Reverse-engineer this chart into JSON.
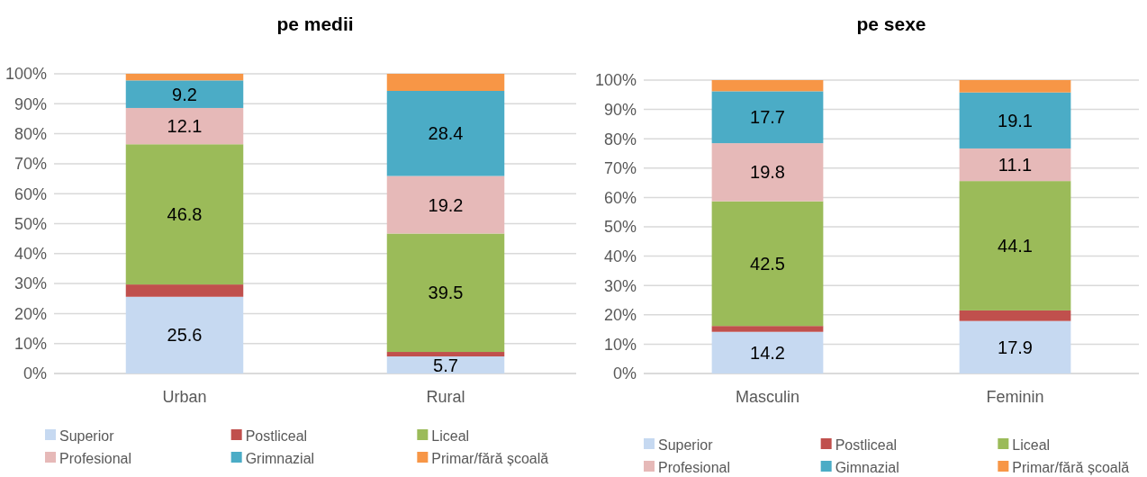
{
  "chart_data": [
    {
      "type": "bar",
      "title": "pe medii",
      "stacked": true,
      "categories": [
        "Urban",
        "Rural"
      ],
      "ylim": [
        0,
        100
      ],
      "yticks": [
        {
          "value": 0,
          "label": "0%"
        },
        {
          "value": 10,
          "label": "10%"
        },
        {
          "value": 20,
          "label": "20%"
        },
        {
          "value": 30,
          "label": "30%"
        },
        {
          "value": 40,
          "label": "40%"
        },
        {
          "value": 50,
          "label": "50%"
        },
        {
          "value": 60,
          "label": "60%"
        },
        {
          "value": 70,
          "label": "70%"
        },
        {
          "value": 80,
          "label": "80%"
        },
        {
          "value": 90,
          "label": "90%"
        },
        {
          "value": 100,
          "label": "100%"
        }
      ],
      "grid": "y",
      "legend": "bottom",
      "series": [
        {
          "name": "Superior",
          "color": "#c6d9f1",
          "values": [
            25.6,
            5.7
          ],
          "value_labels": [
            "25.6",
            "5.7"
          ]
        },
        {
          "name": "Postliceal",
          "color": "#c0504d",
          "values": [
            4.1,
            1.5
          ],
          "value_labels": [
            null,
            null
          ]
        },
        {
          "name": "Liceal",
          "color": "#9bbb59",
          "values": [
            46.8,
            39.5
          ],
          "value_labels": [
            "46.8",
            "39.5"
          ]
        },
        {
          "name": "Profesional",
          "color": "#e6b9b8",
          "values": [
            12.1,
            19.2
          ],
          "value_labels": [
            "12.1",
            "19.2"
          ]
        },
        {
          "name": "Grimnazial",
          "color": "#4bacc6",
          "values": [
            9.2,
            28.4
          ],
          "value_labels": [
            "9.2",
            "28.4"
          ]
        },
        {
          "name": "Primar/fără școală",
          "color": "#f79646",
          "values": [
            2.2,
            5.7
          ],
          "value_labels": [
            null,
            null
          ]
        }
      ]
    },
    {
      "type": "bar",
      "title": "pe sexe",
      "stacked": true,
      "categories": [
        "Masculin",
        "Feminin"
      ],
      "ylim": [
        0,
        100
      ],
      "yticks": [
        {
          "value": 0,
          "label": "0%"
        },
        {
          "value": 10,
          "label": "10%"
        },
        {
          "value": 20,
          "label": "20%"
        },
        {
          "value": 30,
          "label": "30%"
        },
        {
          "value": 40,
          "label": "40%"
        },
        {
          "value": 50,
          "label": "50%"
        },
        {
          "value": 60,
          "label": "60%"
        },
        {
          "value": 70,
          "label": "70%"
        },
        {
          "value": 80,
          "label": "80%"
        },
        {
          "value": 90,
          "label": "90%"
        },
        {
          "value": 100,
          "label": "100%"
        }
      ],
      "grid": "y",
      "legend": "bottom",
      "series": [
        {
          "name": "Superior",
          "color": "#c6d9f1",
          "values": [
            14.2,
            17.9
          ],
          "value_labels": [
            "14.2",
            "17.9"
          ]
        },
        {
          "name": "Postliceal",
          "color": "#c0504d",
          "values": [
            2.0,
            3.6
          ],
          "value_labels": [
            null,
            null
          ]
        },
        {
          "name": "Liceal",
          "color": "#9bbb59",
          "values": [
            42.5,
            44.1
          ],
          "value_labels": [
            "42.5",
            "44.1"
          ]
        },
        {
          "name": "Profesional",
          "color": "#e6b9b8",
          "values": [
            19.8,
            11.1
          ],
          "value_labels": [
            "19.8",
            "11.1"
          ]
        },
        {
          "name": "Gimnazial",
          "color": "#4bacc6",
          "values": [
            17.7,
            19.1
          ],
          "value_labels": [
            "17.7",
            "19.1"
          ]
        },
        {
          "name": "Primar/fără școală",
          "color": "#f79646",
          "values": [
            3.8,
            4.2
          ],
          "value_labels": [
            null,
            null
          ]
        }
      ]
    }
  ]
}
